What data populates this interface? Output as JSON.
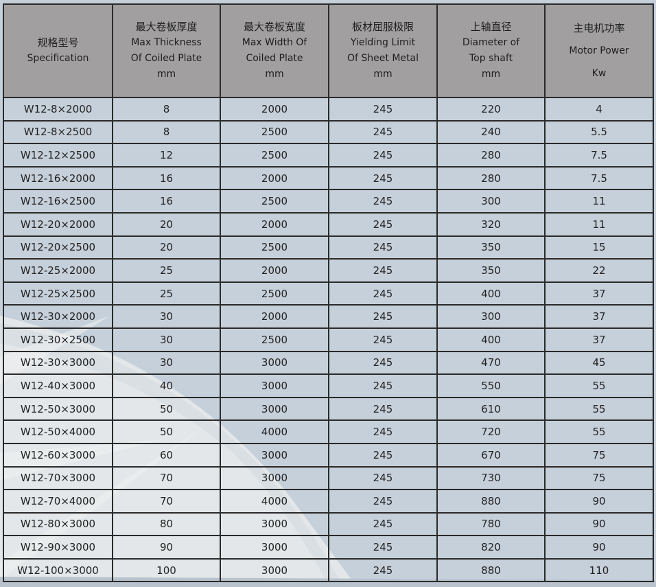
{
  "table": {
    "headers": [
      {
        "cn": "规格型号",
        "en": [
          "Specification"
        ]
      },
      {
        "cn": "最大卷板厚度",
        "en": [
          "Max Thickness",
          "Of Coiled Plate",
          "mm"
        ]
      },
      {
        "cn": "最大卷板宽度",
        "en": [
          "Max Width  Of",
          "Coiled Plate",
          "mm"
        ]
      },
      {
        "cn": "板材屈服极限",
        "en": [
          "Yielding Limit",
          "Of  Sheet Metal",
          "mm"
        ]
      },
      {
        "cn": "上轴直径",
        "en": [
          "Diameter of",
          "Top shaft",
          "mm"
        ]
      },
      {
        "cn": "主电机功率",
        "en": [
          "Motor Power",
          "Kw"
        ]
      }
    ],
    "rows": [
      [
        "W12-8×2000",
        "8",
        "2000",
        "245",
        "220",
        "4"
      ],
      [
        "W12-8×2500",
        "8",
        "2500",
        "245",
        "240",
        "5.5"
      ],
      [
        "W12-12×2500",
        "12",
        "2500",
        "245",
        "280",
        "7.5"
      ],
      [
        "W12-16×2000",
        "16",
        "2000",
        "245",
        "280",
        "7.5"
      ],
      [
        "W12-16×2500",
        "16",
        "2500",
        "245",
        "300",
        "11"
      ],
      [
        "W12-20×2000",
        "20",
        "2000",
        "245",
        "320",
        "11"
      ],
      [
        "W12-20×2500",
        "20",
        "2500",
        "245",
        "350",
        "15"
      ],
      [
        "W12-25×2000",
        "25",
        "2000",
        "245",
        "350",
        "22"
      ],
      [
        "W12-25×2500",
        "25",
        "2500",
        "245",
        "400",
        "37"
      ],
      [
        "W12-30×2000",
        "30",
        "2000",
        "245",
        "300",
        "37"
      ],
      [
        "W12-30×2500",
        "30",
        "2500",
        "245",
        "400",
        "37"
      ],
      [
        "W12-30×3000",
        "30",
        "3000",
        "245",
        "470",
        "45"
      ],
      [
        "W12-40×3000",
        "40",
        "3000",
        "245",
        "550",
        "55"
      ],
      [
        "W12-50×3000",
        "50",
        "3000",
        "245",
        "610",
        "55"
      ],
      [
        "W12-50×4000",
        "50",
        "4000",
        "245",
        "720",
        "55"
      ],
      [
        "W12-60×3000",
        "60",
        "3000",
        "245",
        "670",
        "75"
      ],
      [
        "W12-70×3000",
        "70",
        "3000",
        "245",
        "730",
        "75"
      ],
      [
        "W12-70×4000",
        "70",
        "4000",
        "245",
        "880",
        "90"
      ],
      [
        "W12-80×3000",
        "80",
        "3000",
        "245",
        "780",
        "90"
      ],
      [
        "W12-90×3000",
        "90",
        "3000",
        "245",
        "820",
        "90"
      ],
      [
        "W12-100×3000",
        "100",
        "3000",
        "245",
        "880",
        "110"
      ]
    ]
  },
  "colors": {
    "header_bg": "#a19fa0",
    "body_bg": "#c6d0da",
    "swoosh": "#e4e8ea",
    "border": "#2a2a2a"
  }
}
